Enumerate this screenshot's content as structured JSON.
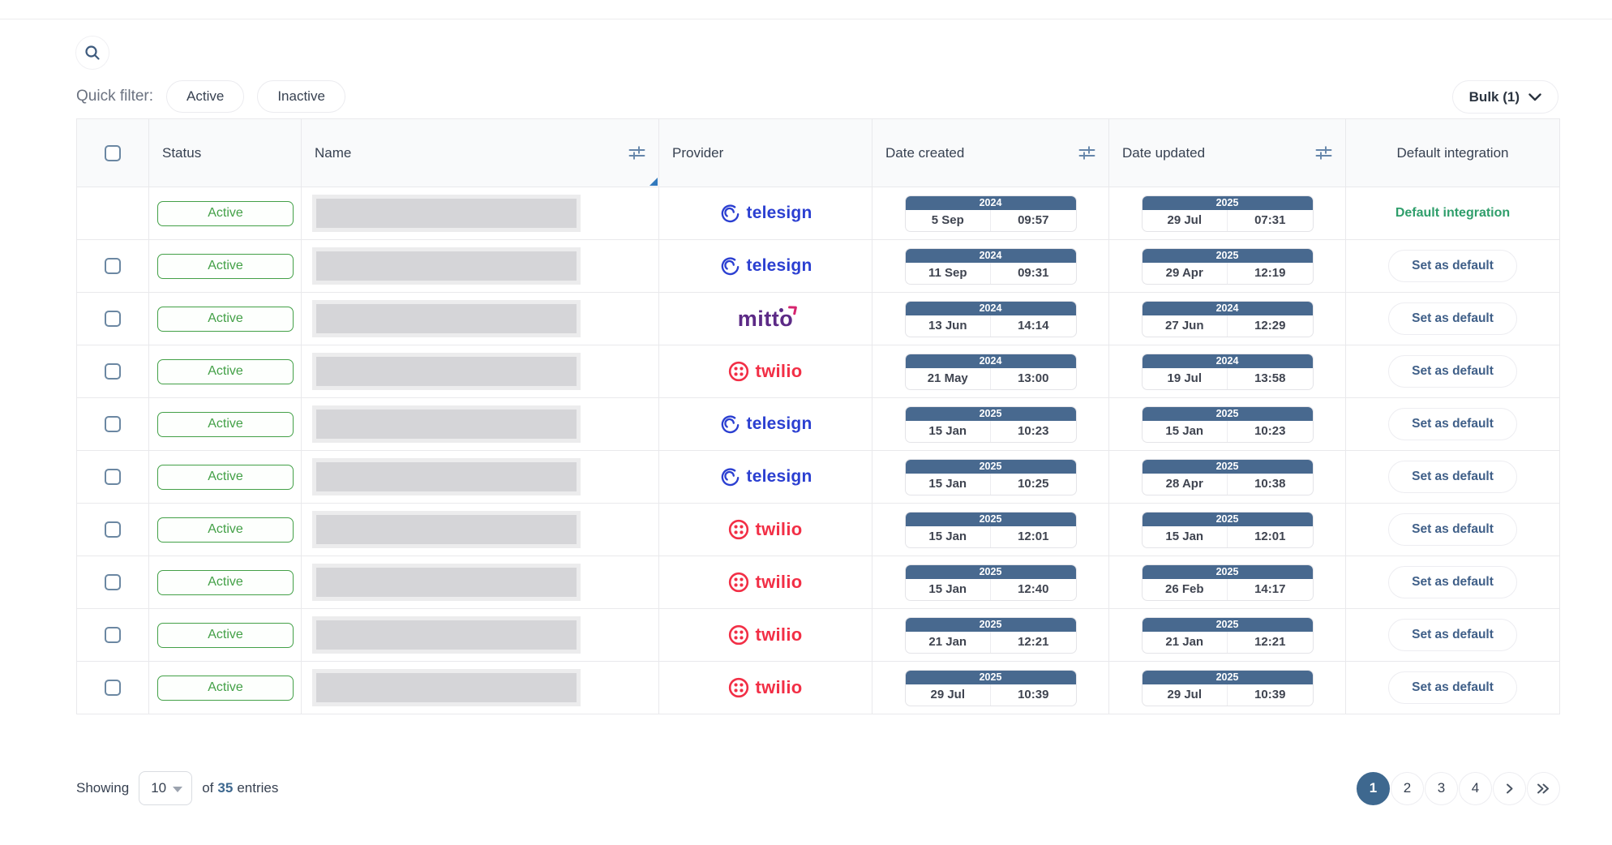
{
  "colors": {
    "badge-blue": "#48698f",
    "accent-green": "#43a047",
    "default-green": "#2f9e6b",
    "link-blue": "#3e688f",
    "action-blue": "#3f5f88",
    "telesign-blue": "#2b3fd1",
    "mitto-purple": "#5c2a86",
    "mitto-pink": "#d6246e",
    "twilio-red": "#f22f46"
  },
  "toolbar": {
    "quick_filter_label": "Quick filter:",
    "filters": {
      "active": "Active",
      "inactive": "Inactive"
    },
    "bulk_label": "Bulk (1)"
  },
  "table": {
    "columns": [
      {
        "label": "",
        "name": "select-all",
        "filter": false
      },
      {
        "label": "Status",
        "name": "status",
        "filter": false
      },
      {
        "label": "Name",
        "name": "name",
        "filter": true,
        "resize_marker": true
      },
      {
        "label": "Provider",
        "name": "provider",
        "filter": false
      },
      {
        "label": "Date created",
        "name": "date-created",
        "filter": true
      },
      {
        "label": "Date updated",
        "name": "date-updated",
        "filter": true
      },
      {
        "label": "Default integration",
        "name": "default-integration",
        "filter": false,
        "center": true
      }
    ],
    "rows": [
      {
        "status": "Active",
        "provider": "telesign",
        "selectable": false,
        "created": {
          "year": "2024",
          "date": "5 Sep",
          "time": "09:57"
        },
        "updated": {
          "year": "2025",
          "date": "29 Jul",
          "time": "07:31"
        },
        "action": {
          "type": "default",
          "label": "Default integration"
        }
      },
      {
        "status": "Active",
        "provider": "telesign",
        "selectable": true,
        "created": {
          "year": "2024",
          "date": "11 Sep",
          "time": "09:31"
        },
        "updated": {
          "year": "2025",
          "date": "29 Apr",
          "time": "12:19"
        },
        "action": {
          "type": "button",
          "label": "Set as default"
        }
      },
      {
        "status": "Active",
        "provider": "mitto",
        "selectable": true,
        "created": {
          "year": "2024",
          "date": "13 Jun",
          "time": "14:14"
        },
        "updated": {
          "year": "2024",
          "date": "27 Jun",
          "time": "12:29"
        },
        "action": {
          "type": "button",
          "label": "Set as default"
        }
      },
      {
        "status": "Active",
        "provider": "twilio",
        "selectable": true,
        "created": {
          "year": "2024",
          "date": "21 May",
          "time": "13:00"
        },
        "updated": {
          "year": "2024",
          "date": "19 Jul",
          "time": "13:58"
        },
        "action": {
          "type": "button",
          "label": "Set as default"
        }
      },
      {
        "status": "Active",
        "provider": "telesign",
        "selectable": true,
        "created": {
          "year": "2025",
          "date": "15 Jan",
          "time": "10:23"
        },
        "updated": {
          "year": "2025",
          "date": "15 Jan",
          "time": "10:23"
        },
        "action": {
          "type": "button",
          "label": "Set as default"
        }
      },
      {
        "status": "Active",
        "provider": "telesign",
        "selectable": true,
        "created": {
          "year": "2025",
          "date": "15 Jan",
          "time": "10:25"
        },
        "updated": {
          "year": "2025",
          "date": "28 Apr",
          "time": "10:38"
        },
        "action": {
          "type": "button",
          "label": "Set as default"
        }
      },
      {
        "status": "Active",
        "provider": "twilio",
        "selectable": true,
        "created": {
          "year": "2025",
          "date": "15 Jan",
          "time": "12:01"
        },
        "updated": {
          "year": "2025",
          "date": "15 Jan",
          "time": "12:01"
        },
        "action": {
          "type": "button",
          "label": "Set as default"
        }
      },
      {
        "status": "Active",
        "provider": "twilio",
        "selectable": true,
        "created": {
          "year": "2025",
          "date": "15 Jan",
          "time": "12:40"
        },
        "updated": {
          "year": "2025",
          "date": "26 Feb",
          "time": "14:17"
        },
        "action": {
          "type": "button",
          "label": "Set as default"
        }
      },
      {
        "status": "Active",
        "provider": "twilio",
        "selectable": true,
        "created": {
          "year": "2025",
          "date": "21 Jan",
          "time": "12:21"
        },
        "updated": {
          "year": "2025",
          "date": "21 Jan",
          "time": "12:21"
        },
        "action": {
          "type": "button",
          "label": "Set as default"
        }
      },
      {
        "status": "Active",
        "provider": "twilio",
        "selectable": true,
        "created": {
          "year": "2025",
          "date": "29 Jul",
          "time": "10:39"
        },
        "updated": {
          "year": "2025",
          "date": "29 Jul",
          "time": "10:39"
        },
        "action": {
          "type": "button",
          "label": "Set as default"
        }
      }
    ]
  },
  "footer": {
    "showing_label": "Showing",
    "page_size": "10",
    "of_label": "of",
    "total_entries": "35",
    "entries_label": "entries",
    "pages": [
      "1",
      "2",
      "3",
      "4"
    ],
    "active_page": "1"
  }
}
